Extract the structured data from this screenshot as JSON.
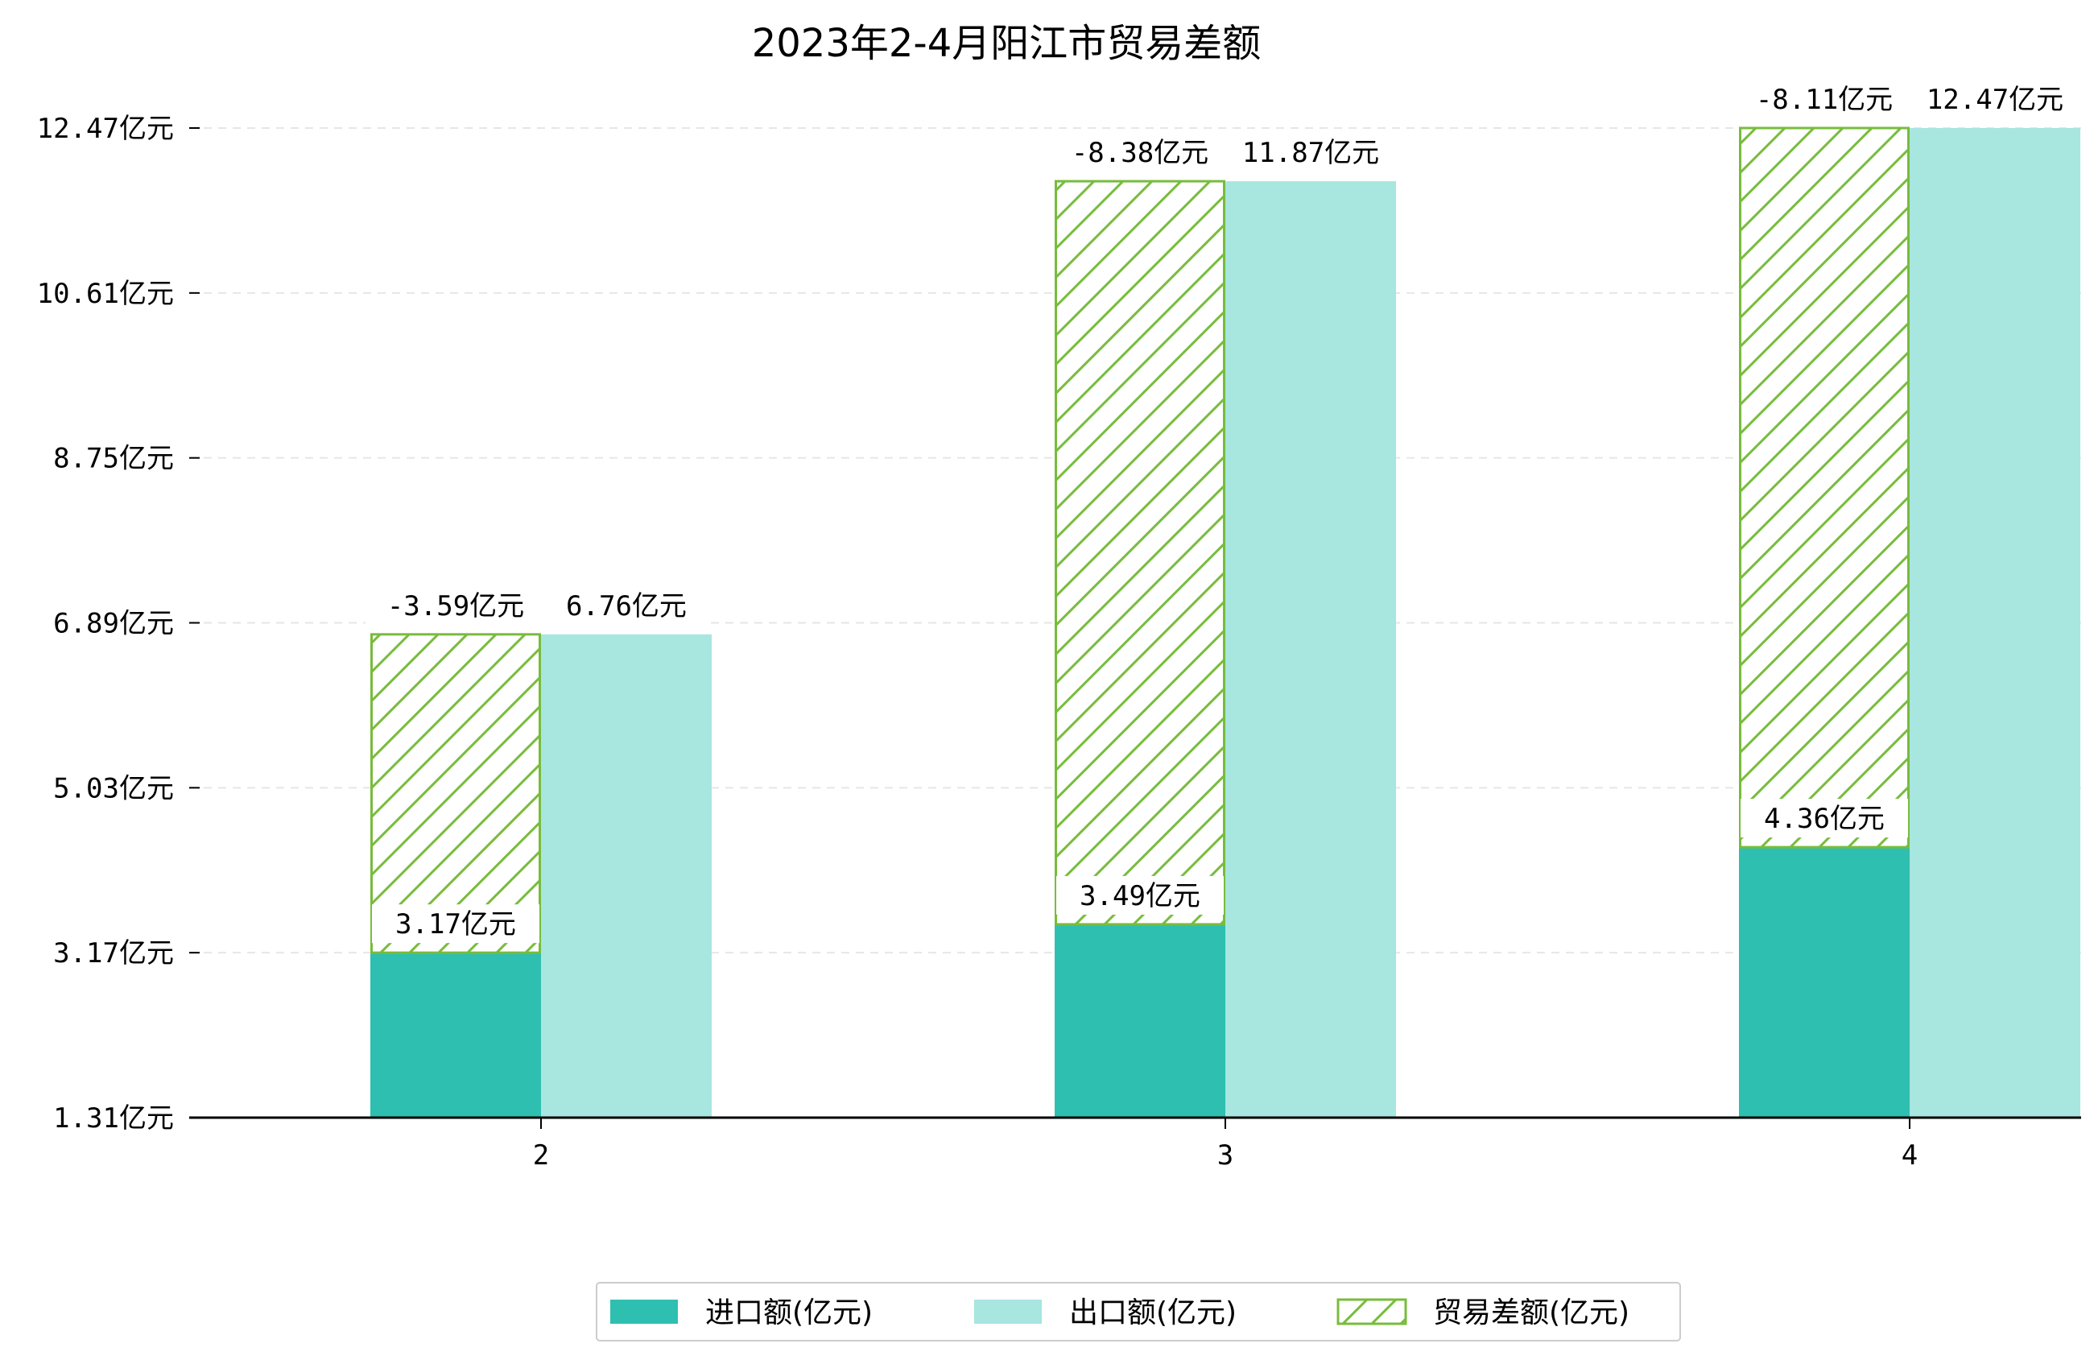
{
  "chart_data": {
    "type": "bar",
    "title": "2023年2-4月阳江市贸易差额",
    "categories": [
      "2",
      "3",
      "4"
    ],
    "series": [
      {
        "name": "进口额(亿元)",
        "key": "import",
        "values": [
          3.17,
          3.49,
          4.36
        ],
        "labels": [
          "3.17亿元",
          "3.49亿元",
          "4.36亿元"
        ],
        "color": "#2ebfb1"
      },
      {
        "name": "出口额(亿元)",
        "key": "export",
        "values": [
          6.76,
          11.87,
          12.47
        ],
        "labels": [
          "6.76亿元",
          "11.87亿元",
          "12.47亿元"
        ],
        "color": "#a8e6e0"
      },
      {
        "name": "贸易差额(亿元)",
        "key": "balance",
        "values": [
          -3.59,
          -8.38,
          -8.11
        ],
        "labels": [
          "-3.59亿元",
          "-8.38亿元",
          "-8.11亿元"
        ],
        "color": "#78bc3c",
        "pattern": "hatch"
      }
    ],
    "yticks": [
      1.31,
      3.17,
      5.03,
      6.89,
      8.75,
      10.61,
      12.47
    ],
    "ytick_labels": [
      "1.31亿元",
      "3.17亿元",
      "5.03亿元",
      "6.89亿元",
      "8.75亿元",
      "10.61亿元",
      "12.47亿元"
    ],
    "ylim": [
      1.31,
      13.0
    ],
    "xlabel": "",
    "ylabel": "",
    "grid": "horizontal dashed",
    "legend_position": "bottom-center"
  }
}
